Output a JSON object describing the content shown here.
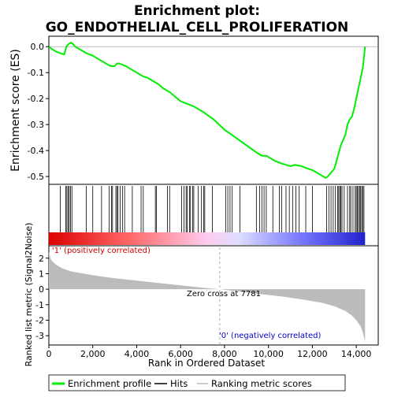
{
  "chart_data": {
    "type": "line",
    "title_line1": "Enrichment plot:",
    "title_line2": "GO_ENDOTHELIAL_CELL_PROLIFERATION",
    "es_panel": {
      "ylabel": "Enrichment score (ES)",
      "ylim": [
        -0.53,
        0.04
      ],
      "yticks": [
        0.0,
        -0.1,
        -0.2,
        -0.3,
        -0.4,
        -0.5
      ],
      "ytick_labels": [
        "0.0",
        "-0.1",
        "-0.2",
        "-0.3",
        "-0.4",
        "-0.5"
      ],
      "series": [
        {
          "name": "Enrichment profile",
          "color": "#00ee00",
          "x": [
            0,
            150,
            350,
            500,
            700,
            800,
            900,
            1000,
            1100,
            1200,
            1400,
            1700,
            2000,
            2300,
            2600,
            2800,
            3000,
            3100,
            3200,
            3500,
            3700,
            4000,
            4300,
            4500,
            4700,
            5000,
            5200,
            5500,
            6000,
            6300,
            6600,
            7000,
            7500,
            8000,
            8500,
            9000,
            9500,
            9700,
            9900,
            10100,
            10300,
            10600,
            10800,
            11000,
            11200,
            11500,
            11800,
            12000,
            12300,
            12600,
            12700,
            12800,
            12900,
            13000,
            13100,
            13200,
            13300,
            13400,
            13500,
            13600,
            13700,
            13800,
            13900,
            14000,
            14100,
            14200,
            14300,
            14350,
            14400
          ],
          "values": [
            0.0,
            -0.01,
            -0.02,
            -0.025,
            -0.03,
            0.0,
            0.01,
            0.015,
            0.01,
            0.0,
            -0.01,
            -0.025,
            -0.035,
            -0.05,
            -0.065,
            -0.075,
            -0.075,
            -0.065,
            -0.065,
            -0.075,
            -0.085,
            -0.1,
            -0.115,
            -0.12,
            -0.13,
            -0.145,
            -0.16,
            -0.175,
            -0.21,
            -0.22,
            -0.23,
            -0.25,
            -0.28,
            -0.32,
            -0.35,
            -0.38,
            -0.41,
            -0.42,
            -0.42,
            -0.43,
            -0.44,
            -0.45,
            -0.455,
            -0.46,
            -0.455,
            -0.46,
            -0.47,
            -0.475,
            -0.49,
            -0.505,
            -0.5,
            -0.49,
            -0.48,
            -0.47,
            -0.44,
            -0.41,
            -0.38,
            -0.36,
            -0.34,
            -0.3,
            -0.28,
            -0.27,
            -0.24,
            -0.2,
            -0.16,
            -0.12,
            -0.08,
            -0.04,
            0.0
          ]
        }
      ]
    },
    "hits_x": [
      520,
      770,
      820,
      880,
      930,
      990,
      1050,
      1700,
      2000,
      2400,
      2750,
      2850,
      2900,
      3050,
      3100,
      3150,
      3250,
      3350,
      3450,
      3800,
      4200,
      4300,
      4850,
      4900,
      5400,
      5500,
      6050,
      6150,
      6250,
      6300,
      6400,
      6450,
      6550,
      6600,
      6800,
      6950,
      7050,
      7100,
      7450,
      8050,
      8150,
      8250,
      8350,
      8700,
      9450,
      9600,
      9700,
      9800,
      9900,
      10200,
      10500,
      10600,
      10800,
      10950,
      11100,
      11250,
      11400,
      11700,
      12000,
      12650,
      12750,
      12850,
      12950,
      13050,
      13150,
      13200,
      13250,
      13300,
      13350,
      13450,
      13600,
      13700,
      13750,
      13850,
      13950,
      14000,
      14050,
      14100,
      14150,
      14200,
      14250,
      14300,
      14350
    ],
    "color_bar": {
      "stops": [
        "#dd0000",
        "#ff6666",
        "#ffccee",
        "#ddddff",
        "#7777ff",
        "#2222cc"
      ],
      "stop_positions": [
        0.0,
        0.25,
        0.5,
        0.6,
        0.8,
        1.0
      ]
    },
    "metric_panel": {
      "ylabel": "Ranked list metric (Signal2Noise)",
      "ylim": [
        -3.6,
        2.8
      ],
      "yticks": [
        2,
        1,
        0,
        -1,
        -2,
        -3
      ],
      "ytick_labels": [
        "2",
        "1",
        "0",
        "-1",
        "-2",
        "-3"
      ],
      "color": "#bbbbbb",
      "x": [
        0,
        100,
        300,
        600,
        1000,
        2000,
        3000,
        4000,
        5000,
        6000,
        7000,
        7781,
        8500,
        9500,
        10500,
        11500,
        12500,
        13000,
        13500,
        13800,
        14000,
        14200,
        14300,
        14400
      ],
      "values": [
        2.4,
        1.9,
        1.6,
        1.35,
        1.15,
        0.9,
        0.7,
        0.55,
        0.4,
        0.25,
        0.1,
        0.0,
        -0.12,
        -0.3,
        -0.45,
        -0.65,
        -0.9,
        -1.1,
        -1.4,
        -1.7,
        -2.0,
        -2.4,
        -2.8,
        -3.4
      ],
      "zero_cross_label": "Zero cross at 7781",
      "zero_cross_x": 7781,
      "pos_label": "'1' (positively correlated)",
      "neg_label": "'0' (negatively correlated)"
    },
    "xaxis": {
      "label": "Rank in Ordered Dataset",
      "xlim": [
        0,
        15000
      ],
      "ticks": [
        0,
        2000,
        4000,
        6000,
        8000,
        10000,
        12000,
        14000
      ],
      "tick_labels": [
        "0",
        "2,000",
        "4,000",
        "6,000",
        "8,000",
        "10,000",
        "12,000",
        "14,000"
      ]
    },
    "legend": {
      "placement": "bottom",
      "items": [
        {
          "label": "Enrichment profile",
          "color": "#00ee00"
        },
        {
          "label": "Hits",
          "color": "#000000"
        },
        {
          "label": "Ranking metric scores",
          "color": "#bbbbbb"
        }
      ]
    }
  }
}
